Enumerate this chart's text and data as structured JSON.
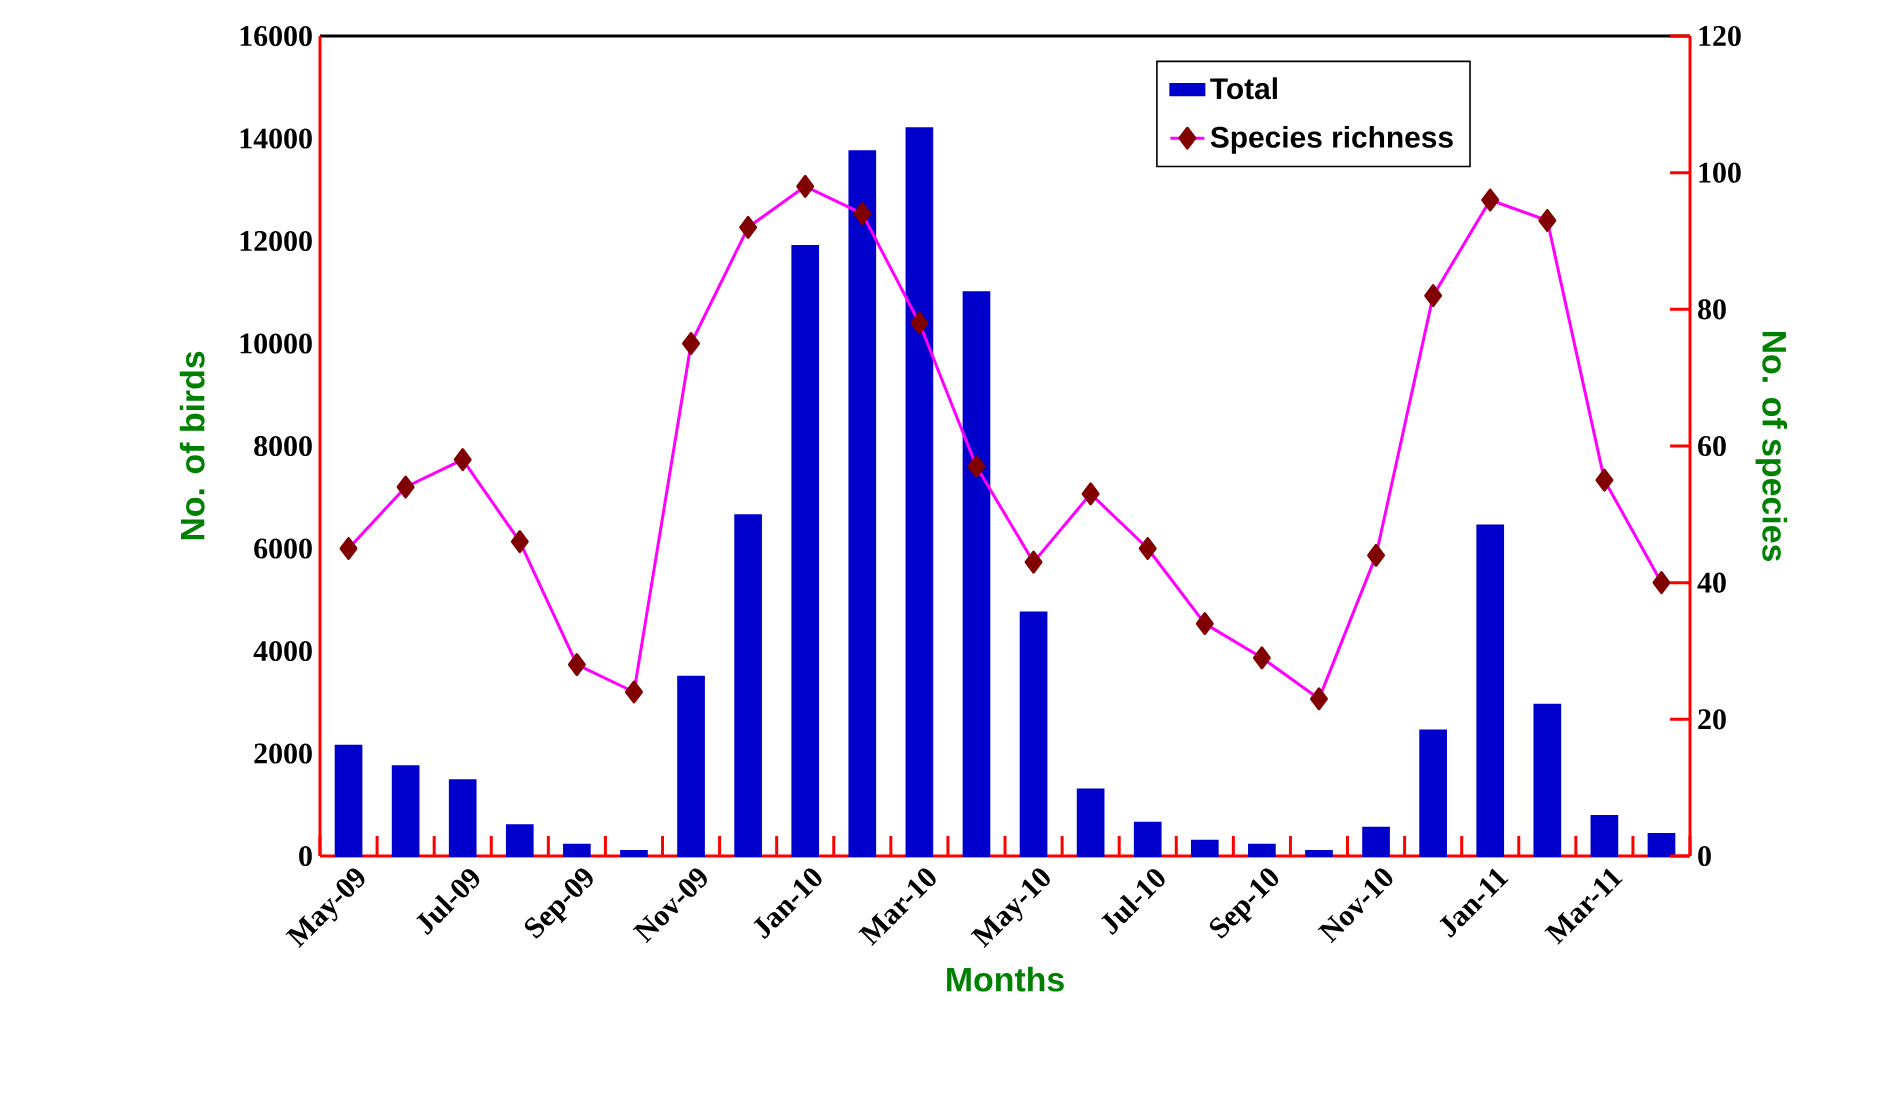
{
  "chart_data": {
    "type": "bar",
    "xlabel": "Months",
    "ylabel": "No. of birds",
    "y2label": "No. of species",
    "categories": [
      "May-09",
      null,
      "Jul-09",
      null,
      "Sep-09",
      null,
      "Nov-09",
      null,
      "Jan-10",
      null,
      "Mar-10",
      null,
      "May-10",
      null,
      "Jul-10",
      null,
      "Sep-10",
      null,
      "Nov-10",
      null,
      "Jan-11",
      null,
      "Mar-11",
      null
    ],
    "series": [
      {
        "name": "Total",
        "color": "#0000cc",
        "values": [
          2150,
          1750,
          1480,
          600,
          220,
          100,
          3500,
          6650,
          11900,
          13750,
          14200,
          11000,
          4750,
          1300,
          650,
          300,
          220,
          100,
          550,
          2450,
          6450,
          2950,
          780,
          430
        ]
      },
      {
        "name": "Species richness",
        "type": "line",
        "axis": "y2",
        "color": "#ff00ff",
        "marker": "diamond",
        "values": [
          45,
          54,
          58,
          46,
          28,
          24,
          75,
          92,
          98,
          94,
          78,
          57,
          43,
          53,
          45,
          34,
          29,
          23,
          44,
          82,
          96,
          93,
          55,
          40
        ]
      }
    ],
    "ylim": [
      0,
      16000
    ],
    "yticks": [
      0,
      2000,
      4000,
      6000,
      8000,
      10000,
      12000,
      14000,
      16000
    ],
    "y2lim": [
      0,
      120
    ],
    "y2ticks": [
      0,
      20,
      40,
      60,
      80,
      100,
      120
    ],
    "legend": "top right",
    "grid": false
  }
}
